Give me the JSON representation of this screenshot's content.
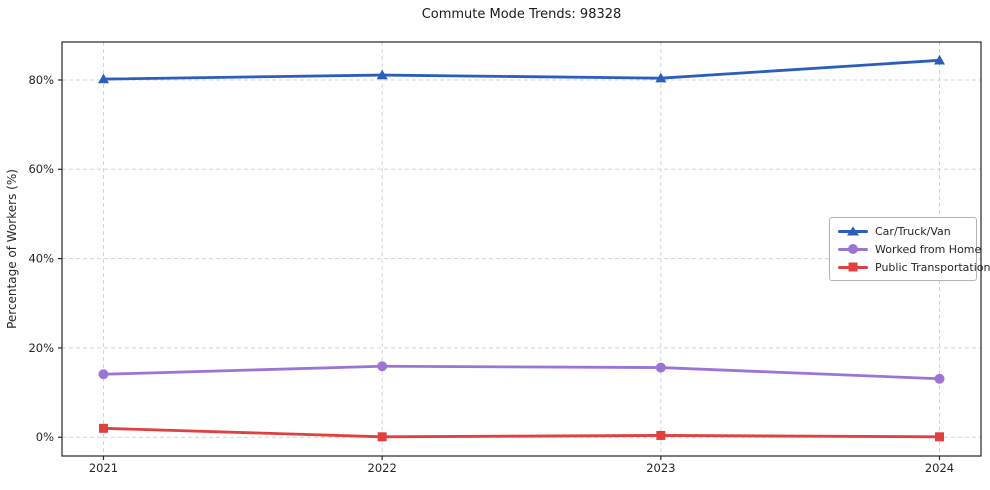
{
  "chart_data": {
    "type": "line",
    "title": "Commute Mode Trends: 98328",
    "xlabel": "",
    "ylabel": "Percentage of Workers (%)",
    "x": [
      2021,
      2022,
      2023,
      2024
    ],
    "xtick_labels": [
      "2021",
      "2022",
      "2023",
      "2024"
    ],
    "yticks": [
      0,
      20,
      40,
      60,
      80
    ],
    "ytick_labels": [
      "0%",
      "20%",
      "40%",
      "60%",
      "80%"
    ],
    "ylim": [
      -4.2,
      88.5
    ],
    "grid": true,
    "grid_style": "dashed",
    "legend": {
      "position": "center-right",
      "entries": [
        "Car/Truck/Van",
        "Worked from Home",
        "Public Transportation"
      ]
    },
    "series": [
      {
        "name": "Car/Truck/Van",
        "color": "#2b5ebc",
        "marker": "triangle",
        "values": [
          80.2,
          81.1,
          80.4,
          84.4
        ]
      },
      {
        "name": "Worked from Home",
        "color": "#9c74d6",
        "marker": "circle",
        "values": [
          14.1,
          15.9,
          15.6,
          13.1
        ]
      },
      {
        "name": "Public Transportation",
        "color": "#e14040",
        "marker": "square",
        "values": [
          2.0,
          0.1,
          0.4,
          0.1
        ]
      }
    ]
  },
  "style": {
    "grid_color": "#d3d3d3",
    "spine_color": "#262626",
    "background": "#ffffff"
  }
}
